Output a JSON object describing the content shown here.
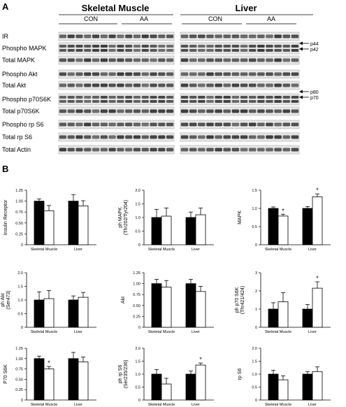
{
  "panel_a": {
    "label": "A",
    "tissues": [
      "Skeletal Muscle",
      "Liver"
    ],
    "groups": [
      "CON",
      "AA"
    ],
    "row_labels": [
      "IR",
      "Phospho MAPK",
      "Total MAPK",
      "Phospho Akt",
      "Total Akt",
      "Phospho p70S6K",
      "Total p70S6K",
      "Phospho rp S6",
      "Total rp S6",
      "Total Actin"
    ],
    "band_annotations": [
      "p44",
      "p42",
      "p80",
      "p70"
    ]
  },
  "panel_b": {
    "label": "B"
  },
  "chart_data": [
    {
      "type": "bar",
      "ylabel": "Insulin Receptor",
      "categories": [
        "Skeletal Muscle",
        "Liver"
      ],
      "ylim": [
        0,
        1.25
      ],
      "yticks": [
        "0",
        "0.25",
        "0.50",
        "0.75",
        "1.00",
        "1.25"
      ],
      "series": [
        {
          "values": [
            1.0,
            1.0
          ],
          "errors": [
            0.05,
            0.15
          ],
          "color": "#000000"
        },
        {
          "values": [
            0.78,
            0.89
          ],
          "errors": [
            0.12,
            0.12
          ],
          "color": "#ffffff"
        }
      ],
      "significance": [
        "",
        ""
      ]
    },
    {
      "type": "bar",
      "ylabel": "ph MAPK (Thr202/Tyr204)",
      "categories": [
        "Skeletal Muscle",
        "Liver"
      ],
      "ylim": [
        0,
        2.0
      ],
      "yticks": [
        "0",
        "0.5",
        "1.0",
        "1.5",
        "2.0"
      ],
      "series": [
        {
          "values": [
            1.0,
            1.0
          ],
          "errors": [
            0.3,
            0.2
          ],
          "color": "#000000"
        },
        {
          "values": [
            1.05,
            1.1
          ],
          "errors": [
            0.3,
            0.25
          ],
          "color": "#ffffff"
        }
      ],
      "significance": [
        "",
        ""
      ]
    },
    {
      "type": "bar",
      "ylabel": "MAPK",
      "categories": [
        "Skeletal Muscle",
        "Liver"
      ],
      "ylim": [
        0,
        1.5
      ],
      "yticks": [
        "0",
        "0.5",
        "1.0",
        "1.5"
      ],
      "series": [
        {
          "values": [
            1.0,
            1.0
          ],
          "errors": [
            0.04,
            0.05
          ],
          "color": "#000000"
        },
        {
          "values": [
            0.79,
            1.32
          ],
          "errors": [
            0.05,
            0.08
          ],
          "color": "#ffffff"
        }
      ],
      "significance": [
        "*",
        "*"
      ]
    },
    {
      "type": "bar",
      "ylabel": "ph Akt (Ser473)",
      "categories": [
        "Skeletal Muscle",
        "Liver"
      ],
      "ylim": [
        0,
        2.0
      ],
      "yticks": [
        "0",
        "0.5",
        "1.0",
        "1.5",
        "2.0"
      ],
      "series": [
        {
          "values": [
            1.0,
            1.0
          ],
          "errors": [
            0.3,
            0.15
          ],
          "color": "#000000"
        },
        {
          "values": [
            1.05,
            1.1
          ],
          "errors": [
            0.3,
            0.18
          ],
          "color": "#ffffff"
        }
      ],
      "significance": [
        "",
        ""
      ]
    },
    {
      "type": "bar",
      "ylabel": "Akt",
      "categories": [
        "Skeletal Muscle",
        "Liver"
      ],
      "ylim": [
        0,
        1.25
      ],
      "yticks": [
        "0",
        "0.25",
        "0.50",
        "0.75",
        "1.00",
        "1.25"
      ],
      "series": [
        {
          "values": [
            1.0,
            1.0
          ],
          "errors": [
            0.1,
            0.1
          ],
          "color": "#000000"
        },
        {
          "values": [
            0.92,
            0.82
          ],
          "errors": [
            0.15,
            0.12
          ],
          "color": "#ffffff"
        }
      ],
      "significance": [
        "",
        ""
      ]
    },
    {
      "type": "bar",
      "ylabel": "ph p70 S6K (Thr421/424)",
      "categories": [
        "Skeletal Muscle",
        "Liver"
      ],
      "ylim": [
        0,
        3
      ],
      "yticks": [
        "0",
        "1",
        "2",
        "3"
      ],
      "series": [
        {
          "values": [
            1.0,
            1.0
          ],
          "errors": [
            0.35,
            0.25
          ],
          "color": "#000000"
        },
        {
          "values": [
            1.4,
            2.15
          ],
          "errors": [
            0.5,
            0.35
          ],
          "color": "#ffffff"
        }
      ],
      "significance": [
        "",
        "*"
      ]
    },
    {
      "type": "bar",
      "ylabel": "P70 S6K",
      "categories": [
        "Skeletal Muscle",
        "Liver"
      ],
      "ylim": [
        0,
        1.25
      ],
      "yticks": [
        "0",
        "0.25",
        "0.50",
        "0.75",
        "1.00",
        "1.25"
      ],
      "series": [
        {
          "values": [
            1.0,
            1.0
          ],
          "errors": [
            0.06,
            0.15
          ],
          "color": "#000000"
        },
        {
          "values": [
            0.75,
            0.92
          ],
          "errors": [
            0.06,
            0.12
          ],
          "color": "#ffffff"
        }
      ],
      "significance": [
        "*",
        ""
      ]
    },
    {
      "type": "bar",
      "ylabel": "ph rp S6 (Ser235/236)",
      "categories": [
        "Skeletal Muscle",
        "Liver"
      ],
      "ylim": [
        0,
        2.0
      ],
      "yticks": [
        "0",
        "0.5",
        "1.0",
        "1.5",
        "2.0"
      ],
      "series": [
        {
          "values": [
            1.0,
            1.0
          ],
          "errors": [
            0.18,
            0.12
          ],
          "color": "#000000"
        },
        {
          "values": [
            0.62,
            1.35
          ],
          "errors": [
            0.22,
            0.08
          ],
          "color": "#ffffff"
        }
      ],
      "significance": [
        "",
        "*"
      ]
    },
    {
      "type": "bar",
      "ylabel": "rp S6",
      "categories": [
        "Skeletal Muscle",
        "Liver"
      ],
      "ylim": [
        0,
        2.0
      ],
      "yticks": [
        "0",
        "0.5",
        "1.0",
        "1.5",
        "2.0"
      ],
      "series": [
        {
          "values": [
            1.0,
            1.0
          ],
          "errors": [
            0.15,
            0.1
          ],
          "color": "#000000"
        },
        {
          "values": [
            0.78,
            1.1
          ],
          "errors": [
            0.15,
            0.18
          ],
          "color": "#ffffff"
        }
      ],
      "significance": [
        "",
        ""
      ]
    }
  ]
}
